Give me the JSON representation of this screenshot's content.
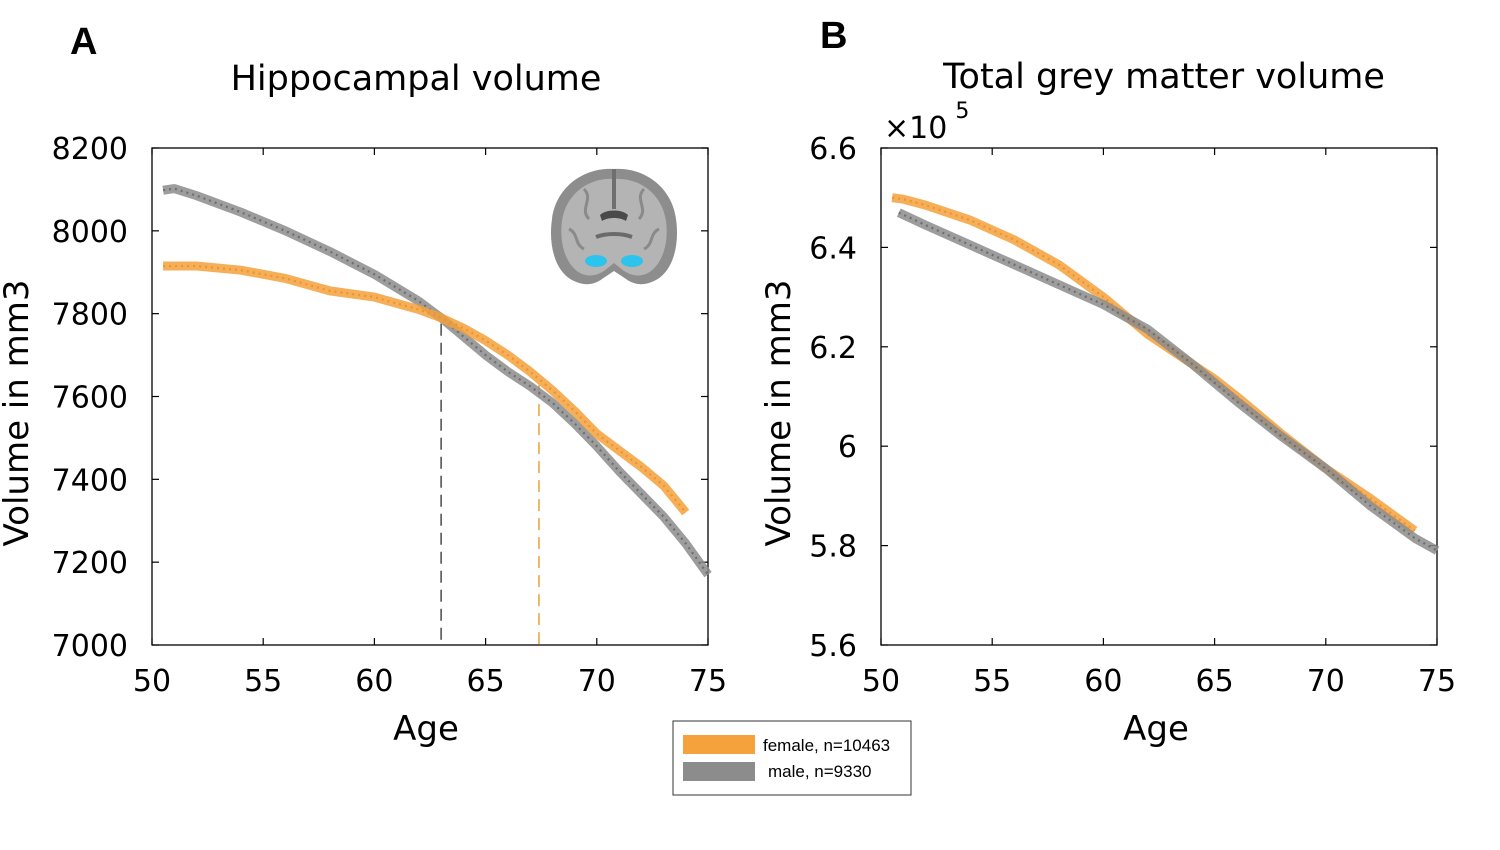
{
  "figure": {
    "legend": {
      "entries": [
        {
          "label": "female, n=10463",
          "color": "#f5a13c"
        },
        {
          "label": "male, n=9330",
          "color": "#8c8c8c"
        }
      ]
    }
  },
  "chart_data": [
    {
      "panel": "A",
      "type": "line",
      "title": "Hippocampal volume",
      "xlabel": "Age",
      "ylabel": "Volume in mm3",
      "xlim": [
        50,
        75
      ],
      "ylim": [
        7000,
        8200
      ],
      "x_ticks": [
        50,
        55,
        60,
        65,
        70,
        75
      ],
      "y_ticks": [
        7000,
        7200,
        7400,
        7600,
        7800,
        8000,
        8200
      ],
      "x_tick_labels": [
        "50",
        "55",
        "60",
        "65",
        "70",
        "75"
      ],
      "y_tick_labels": [
        "7000",
        "7200",
        "7400",
        "7600",
        "7800",
        "8000",
        "8200"
      ],
      "grid": false,
      "inset": "coronal brain slice with hippocampus highlighted in cyan",
      "series": [
        {
          "name": "female, n=10463",
          "color": "#f5a13c",
          "x": [
            50.5,
            52,
            54,
            56,
            58,
            60,
            62,
            63,
            64,
            65,
            66,
            67,
            68,
            69,
            70,
            71,
            72,
            73,
            74
          ],
          "y": [
            7915,
            7915,
            7905,
            7885,
            7855,
            7840,
            7810,
            7790,
            7765,
            7735,
            7700,
            7660,
            7615,
            7565,
            7510,
            7470,
            7430,
            7385,
            7320
          ]
        },
        {
          "name": "male, n=9330",
          "color": "#8c8c8c",
          "x": [
            50.5,
            51,
            52,
            54,
            56,
            58,
            60,
            62,
            63,
            64,
            65,
            66,
            67,
            68,
            69,
            70,
            71,
            72,
            73,
            74,
            75
          ],
          "y": [
            8098,
            8102,
            8085,
            8045,
            8000,
            7950,
            7895,
            7830,
            7790,
            7745,
            7700,
            7660,
            7625,
            7585,
            7535,
            7480,
            7420,
            7365,
            7310,
            7245,
            7170
          ]
        }
      ],
      "annotations": [
        {
          "type": "vertical-dashed",
          "x": 63.0,
          "color": "#555555"
        },
        {
          "type": "vertical-dashed",
          "x": 67.4,
          "color": "#e8a844"
        }
      ]
    },
    {
      "panel": "B",
      "type": "line",
      "title": "Total grey matter volume",
      "xlabel": "Age",
      "ylabel": "Volume in mm3",
      "axis_multiplier": "×10",
      "axis_multiplier_exponent": "5",
      "xlim": [
        50,
        75
      ],
      "ylim": [
        5.6,
        6.6
      ],
      "x_ticks": [
        50,
        55,
        60,
        65,
        70,
        75
      ],
      "y_ticks": [
        5.6,
        5.8,
        6.0,
        6.2,
        6.4,
        6.6
      ],
      "x_tick_labels": [
        "50",
        "55",
        "60",
        "65",
        "70",
        "75"
      ],
      "y_tick_labels": [
        "5.6",
        "5.8",
        "6",
        "6.2",
        "6.4",
        "6.6"
      ],
      "grid": false,
      "series": [
        {
          "name": "female, n=10463",
          "color": "#f5a13c",
          "x": [
            50.5,
            51,
            52,
            54,
            56,
            58,
            60,
            62,
            64,
            65,
            66,
            68,
            70,
            72,
            74
          ],
          "y": [
            6.5,
            6.497,
            6.485,
            6.455,
            6.415,
            6.365,
            6.3,
            6.225,
            6.165,
            6.135,
            6.1,
            6.025,
            5.955,
            5.895,
            5.83
          ]
        },
        {
          "name": "male, n=9330",
          "color": "#8c8c8c",
          "x": [
            50.8,
            52,
            54,
            56,
            58,
            60,
            62,
            64,
            66,
            68,
            70,
            72,
            74,
            75
          ],
          "y": [
            6.47,
            6.445,
            6.405,
            6.365,
            6.325,
            6.285,
            6.235,
            6.165,
            6.09,
            6.02,
            5.955,
            5.88,
            5.815,
            5.79
          ]
        }
      ]
    }
  ]
}
